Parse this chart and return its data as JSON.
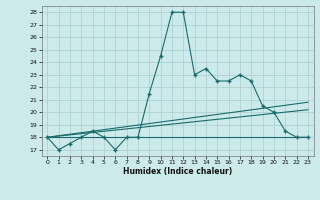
{
  "title": "",
  "xlabel": "Humidex (Indice chaleur)",
  "background_color": "#cceaea",
  "grid_color": "#aacccc",
  "line_color": "#1a6b6b",
  "xlim": [
    -0.5,
    23.5
  ],
  "ylim": [
    16.5,
    28.5
  ],
  "xticks": [
    0,
    1,
    2,
    3,
    4,
    5,
    6,
    7,
    8,
    9,
    10,
    11,
    12,
    13,
    14,
    15,
    16,
    17,
    18,
    19,
    20,
    21,
    22,
    23
  ],
  "yticks": [
    17,
    18,
    19,
    20,
    21,
    22,
    23,
    24,
    25,
    26,
    27,
    28
  ],
  "y_main": [
    18,
    17,
    17.5,
    18,
    18.5,
    18,
    17,
    18,
    18,
    21.5,
    24.5,
    28,
    28,
    23,
    23.5,
    22.5,
    22.5,
    23,
    22.5,
    20.5,
    20,
    18.5,
    18,
    18
  ],
  "y_horiz": [
    18,
    18,
    18,
    18,
    18,
    18,
    18,
    18,
    18,
    18,
    18,
    18,
    18,
    18,
    18,
    18,
    18,
    18,
    18,
    18,
    18,
    18,
    18,
    18
  ],
  "trend1_x": [
    0,
    23
  ],
  "trend1_y": [
    18.0,
    20.2
  ],
  "trend2_x": [
    0,
    23
  ],
  "trend2_y": [
    18.0,
    20.8
  ]
}
